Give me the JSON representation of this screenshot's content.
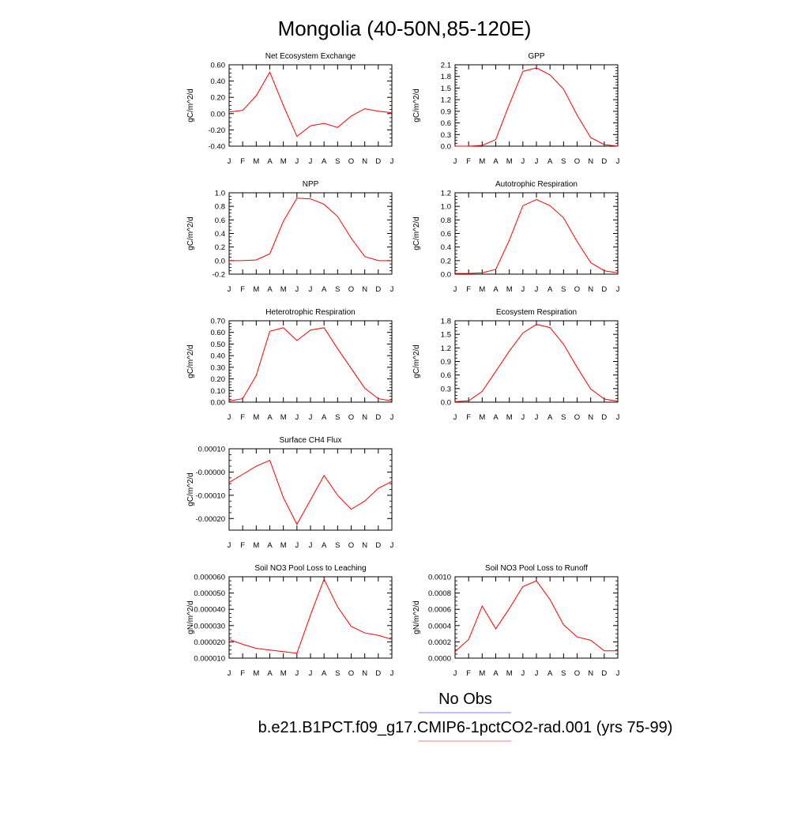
{
  "page": {
    "title": "Mongolia (40-50N,85-120E)"
  },
  "legend": {
    "items": [
      {
        "label": "No Obs",
        "color": "#7b7bff"
      },
      {
        "label": "b.e21.B1PCT.f09_g17.CMIP6-1pctCO2-rad.001 (yrs 75-99)",
        "color": "#ff7b7b"
      }
    ]
  },
  "chart_data": [
    {
      "type": "line",
      "title": "Net Ecosystem Exchange",
      "ylabel": "gC/m^2/d",
      "categories": [
        "J",
        "F",
        "M",
        "A",
        "M",
        "J",
        "J",
        "A",
        "S",
        "O",
        "N",
        "D",
        "J"
      ],
      "ylim": [
        -0.4,
        0.6
      ],
      "yticks": [
        "0.60",
        "0.40",
        "0.20",
        "0.00",
        "-0.20",
        "-0.40"
      ],
      "ytick_values": [
        0.6,
        0.4,
        0.2,
        0.0,
        -0.2,
        -0.4
      ],
      "series": [
        {
          "color": "#ff0000",
          "values": [
            0.02,
            0.04,
            0.22,
            0.51,
            0.1,
            -0.28,
            -0.15,
            -0.12,
            -0.17,
            -0.03,
            0.06,
            0.03,
            0.01
          ]
        }
      ]
    },
    {
      "type": "line",
      "title": "GPP",
      "ylabel": "gC/m^2/d",
      "categories": [
        "J",
        "F",
        "M",
        "A",
        "M",
        "J",
        "J",
        "A",
        "S",
        "O",
        "N",
        "D",
        "J"
      ],
      "ylim": [
        0,
        2.1
      ],
      "yticks": [
        "2.1",
        "1.8",
        "1.5",
        "1.2",
        "0.9",
        "0.6",
        "0.3",
        "0.0"
      ],
      "ytick_values": [
        2.1,
        1.8,
        1.5,
        1.2,
        0.9,
        0.6,
        0.3,
        0.0
      ],
      "series": [
        {
          "color": "#ff0000",
          "values": [
            0.0,
            0.0,
            0.02,
            0.17,
            1.08,
            1.93,
            2.02,
            1.84,
            1.47,
            0.8,
            0.22,
            0.04,
            0.0
          ]
        }
      ]
    },
    {
      "type": "line",
      "title": "NPP",
      "ylabel": "gC/m^2/d",
      "categories": [
        "J",
        "F",
        "M",
        "A",
        "M",
        "J",
        "J",
        "A",
        "S",
        "O",
        "N",
        "D",
        "J"
      ],
      "ylim": [
        -0.2,
        1.0
      ],
      "yticks": [
        "1.0",
        "0.8",
        "0.6",
        "0.4",
        "0.2",
        "0.0",
        "-0.2"
      ],
      "ytick_values": [
        1.0,
        0.8,
        0.6,
        0.4,
        0.2,
        0.0,
        -0.2
      ],
      "series": [
        {
          "color": "#ff0000",
          "values": [
            0.0,
            0.0,
            0.01,
            0.1,
            0.58,
            0.92,
            0.91,
            0.83,
            0.65,
            0.33,
            0.06,
            0.0,
            0.0
          ]
        }
      ]
    },
    {
      "type": "line",
      "title": "Autotrophic Respiration",
      "ylabel": "gC/m^2/d",
      "categories": [
        "J",
        "F",
        "M",
        "A",
        "M",
        "J",
        "J",
        "A",
        "S",
        "O",
        "N",
        "D",
        "J"
      ],
      "ylim": [
        0,
        1.2
      ],
      "yticks": [
        "1.2",
        "1.0",
        "0.8",
        "0.6",
        "0.4",
        "0.2",
        "0.0"
      ],
      "ytick_values": [
        1.2,
        1.0,
        0.8,
        0.6,
        0.4,
        0.2,
        0.0
      ],
      "series": [
        {
          "color": "#ff0000",
          "values": [
            0.01,
            0.01,
            0.02,
            0.07,
            0.5,
            1.01,
            1.1,
            1.01,
            0.83,
            0.48,
            0.17,
            0.05,
            0.02
          ]
        }
      ]
    },
    {
      "type": "line",
      "title": "Heterotrophic Respiration",
      "ylabel": "gC/m^2/d",
      "categories": [
        "J",
        "F",
        "M",
        "A",
        "M",
        "J",
        "J",
        "A",
        "S",
        "O",
        "N",
        "D",
        "J"
      ],
      "ylim": [
        0,
        0.7
      ],
      "yticks": [
        "0.70",
        "0.60",
        "0.50",
        "0.40",
        "0.30",
        "0.20",
        "0.10",
        "0.00"
      ],
      "ytick_values": [
        0.7,
        0.6,
        0.5,
        0.4,
        0.3,
        0.2,
        0.1,
        0.0
      ],
      "series": [
        {
          "color": "#ff0000",
          "values": [
            0.01,
            0.03,
            0.23,
            0.61,
            0.64,
            0.53,
            0.62,
            0.64,
            0.46,
            0.29,
            0.12,
            0.03,
            0.01
          ]
        }
      ]
    },
    {
      "type": "line",
      "title": "Ecosystem Respiration",
      "ylabel": "gC/m^2/d",
      "categories": [
        "J",
        "F",
        "M",
        "A",
        "M",
        "J",
        "J",
        "A",
        "S",
        "O",
        "N",
        "D",
        "J"
      ],
      "ylim": [
        0,
        1.8
      ],
      "yticks": [
        "1.8",
        "1.5",
        "1.2",
        "0.9",
        "0.6",
        "0.3",
        "0.0"
      ],
      "ytick_values": [
        1.8,
        1.5,
        1.2,
        0.9,
        0.6,
        0.3,
        0.0
      ],
      "series": [
        {
          "color": "#ff0000",
          "values": [
            0.01,
            0.03,
            0.24,
            0.68,
            1.13,
            1.53,
            1.72,
            1.65,
            1.28,
            0.77,
            0.29,
            0.07,
            0.02
          ]
        }
      ]
    },
    {
      "type": "line",
      "title": "Surface CH4 Flux",
      "ylabel": "gC/m^2/d",
      "categories": [
        "J",
        "F",
        "M",
        "A",
        "M",
        "J",
        "J",
        "A",
        "S",
        "O",
        "N",
        "D",
        "J"
      ],
      "ylim": [
        -0.00025,
        0.0001
      ],
      "yticks": [
        "0.00010",
        "-0.00000",
        "-0.00010",
        "-0.00020"
      ],
      "ytick_values": [
        0.0001,
        0.0,
        -0.0001,
        -0.0002
      ],
      "series": [
        {
          "color": "#ff0000",
          "values": [
            -4.5e-05,
            -1e-05,
            2.5e-05,
            5e-05,
            -0.00011,
            -0.000225,
            -0.00012,
            -1.5e-05,
            -0.0001,
            -0.00016,
            -0.000125,
            -7e-05,
            -4e-05
          ]
        }
      ]
    },
    {
      "type": "line",
      "title": "Soil NO3 Pool Loss to Leaching",
      "ylabel": "gN/m^2/d",
      "categories": [
        "J",
        "F",
        "M",
        "A",
        "M",
        "J",
        "J",
        "A",
        "S",
        "O",
        "N",
        "D",
        "J"
      ],
      "ylim": [
        1e-05,
        6e-05
      ],
      "yticks": [
        "0.000060",
        "0.000050",
        "0.000040",
        "0.000030",
        "0.000020",
        "0.000010"
      ],
      "ytick_values": [
        6e-05,
        5e-05,
        4e-05,
        3e-05,
        2e-05,
        1e-05
      ],
      "series": [
        {
          "color": "#ff0000",
          "values": [
            2.15e-05,
            1.85e-05,
            1.6e-05,
            1.5e-05,
            1.4e-05,
            1.3e-05,
            3.65e-05,
            5.85e-05,
            4.15e-05,
            2.95e-05,
            2.55e-05,
            2.4e-05,
            2.15e-05
          ]
        }
      ]
    },
    {
      "type": "line",
      "title": "Soil NO3 Pool Loss to Runoff",
      "ylabel": "gN/m^2/d",
      "categories": [
        "J",
        "F",
        "M",
        "A",
        "M",
        "J",
        "J",
        "A",
        "S",
        "O",
        "N",
        "D",
        "J"
      ],
      "ylim": [
        0,
        0.001
      ],
      "yticks": [
        "0.0010",
        "0.0008",
        "0.0006",
        "0.0004",
        "0.0002",
        "0.0000"
      ],
      "ytick_values": [
        0.001,
        0.0008,
        0.0006,
        0.0004,
        0.0002,
        0.0
      ],
      "series": [
        {
          "color": "#ff0000",
          "values": [
            8e-05,
            0.00023,
            0.00064,
            0.00036,
            0.00061,
            0.00088,
            0.00095,
            0.00072,
            0.00041,
            0.00026,
            0.00022,
            9e-05,
            9e-05
          ]
        }
      ]
    }
  ]
}
